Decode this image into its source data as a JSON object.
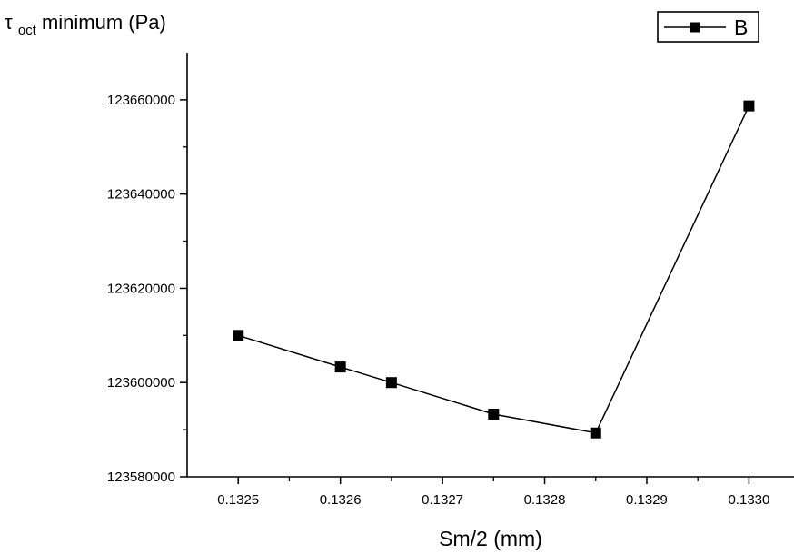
{
  "chart_data": {
    "type": "line",
    "title": "",
    "xlabel": "Sm/2 (mm)",
    "ylabel": {
      "symbol": "τ",
      "subscript": "oct",
      "text": " minimum (Pa)"
    },
    "xlim": [
      0.13245,
      0.1330441
    ],
    "ylim": [
      123580000,
      123670000
    ],
    "x_ticks": [
      0.1325,
      0.1326,
      0.1327,
      0.1328,
      0.1329,
      0.133
    ],
    "x_tick_labels": [
      "0.1325",
      "0.1326",
      "0.1327",
      "0.1328",
      "0.1329",
      "0.1330"
    ],
    "y_ticks": [
      123580000,
      123600000,
      123620000,
      123640000,
      123660000
    ],
    "y_tick_labels": [
      "123580000",
      "123600000",
      "123620000",
      "123640000",
      "123660000"
    ],
    "grid": false,
    "legend_position": "top-right",
    "series": [
      {
        "name": "B",
        "color": "#000000",
        "marker": "square",
        "x": [
          0.1325,
          0.1326,
          0.13265,
          0.13275,
          0.13285,
          0.133
        ],
        "y": [
          123610000,
          123603300,
          123600000,
          123593300,
          123589300,
          123658700
        ]
      }
    ]
  }
}
